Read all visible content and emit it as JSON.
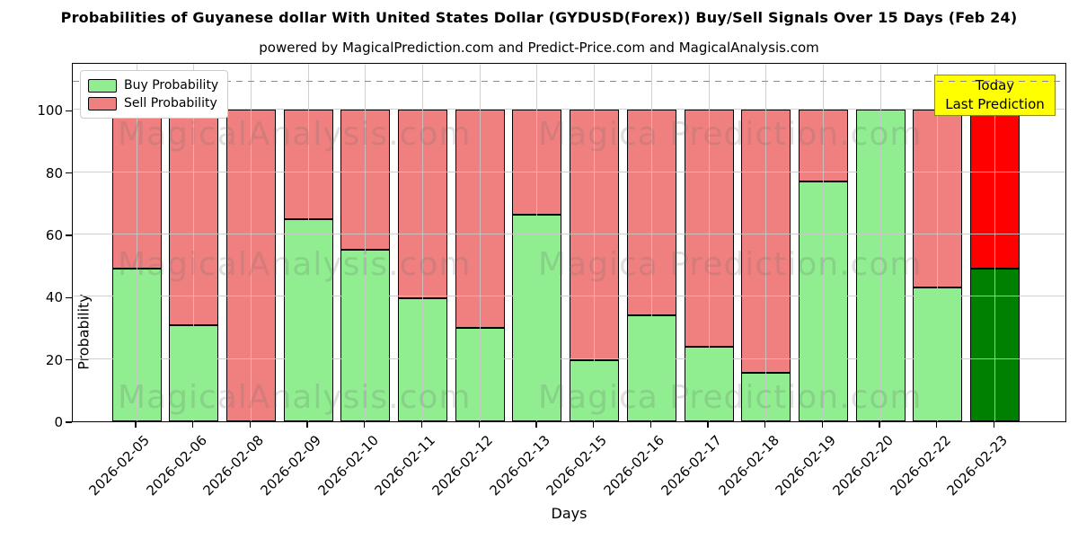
{
  "title": "Probabilities of Guyanese dollar With United States Dollar (GYDUSD(Forex)) Buy/Sell Signals Over 15 Days (Feb 24)",
  "subtitle": "powered by MagicalPrediction.com and Predict-Price.com and MagicalAnalysis.com",
  "watermarks": {
    "left_text": "MagicalAnalysis.com",
    "right_text": "Magica Prediction.com"
  },
  "annotation": {
    "line1": "Today",
    "line2": "Last Prediction",
    "bg_color": "#ffff00"
  },
  "colors": {
    "buy": "#90ee90",
    "sell": "#f08080",
    "today_buy": "#008000",
    "today_sell": "#ff0000",
    "grid": "#c8c8c8",
    "dashed_line": "#8a8a8a"
  },
  "chart_data": {
    "type": "bar",
    "stacked": true,
    "title": "Probabilities of Guyanese dollar With United States Dollar (GYDUSD(Forex)) Buy/Sell Signals Over 15 Days (Feb 24)",
    "xlabel": "Days",
    "ylabel": "Probability",
    "ylim": [
      0,
      115.4
    ],
    "yticks": [
      0,
      20,
      40,
      60,
      80,
      100
    ],
    "dashed_line_y": 110,
    "grid": true,
    "legend_position": "upper left",
    "categories": [
      "2026-02-05",
      "2026-02-06",
      "2026-02-08",
      "2026-02-09",
      "2026-02-10",
      "2026-02-11",
      "2026-02-12",
      "2026-02-13",
      "2026-02-15",
      "2026-02-16",
      "2026-02-17",
      "2026-02-18",
      "2026-02-19",
      "2026-02-20",
      "2026-02-22",
      "2026-02-23"
    ],
    "series": [
      {
        "name": "Buy Probability",
        "color": "#90ee90",
        "values": [
          49,
          31,
          0,
          65,
          55,
          39.5,
          30,
          66.5,
          19.5,
          34,
          24,
          15.5,
          77,
          100,
          43,
          49
        ]
      },
      {
        "name": "Sell Probability",
        "color": "#f08080",
        "values": [
          51,
          69,
          100,
          35,
          45,
          60.5,
          70,
          33.5,
          80.5,
          66,
          76,
          84.5,
          23,
          0,
          57,
          51
        ]
      }
    ],
    "today_bar": {
      "category": "2026-02-23",
      "buy_value": 49,
      "sell_value": 51,
      "buy_color": "#008000",
      "sell_color": "#ff0000"
    }
  }
}
